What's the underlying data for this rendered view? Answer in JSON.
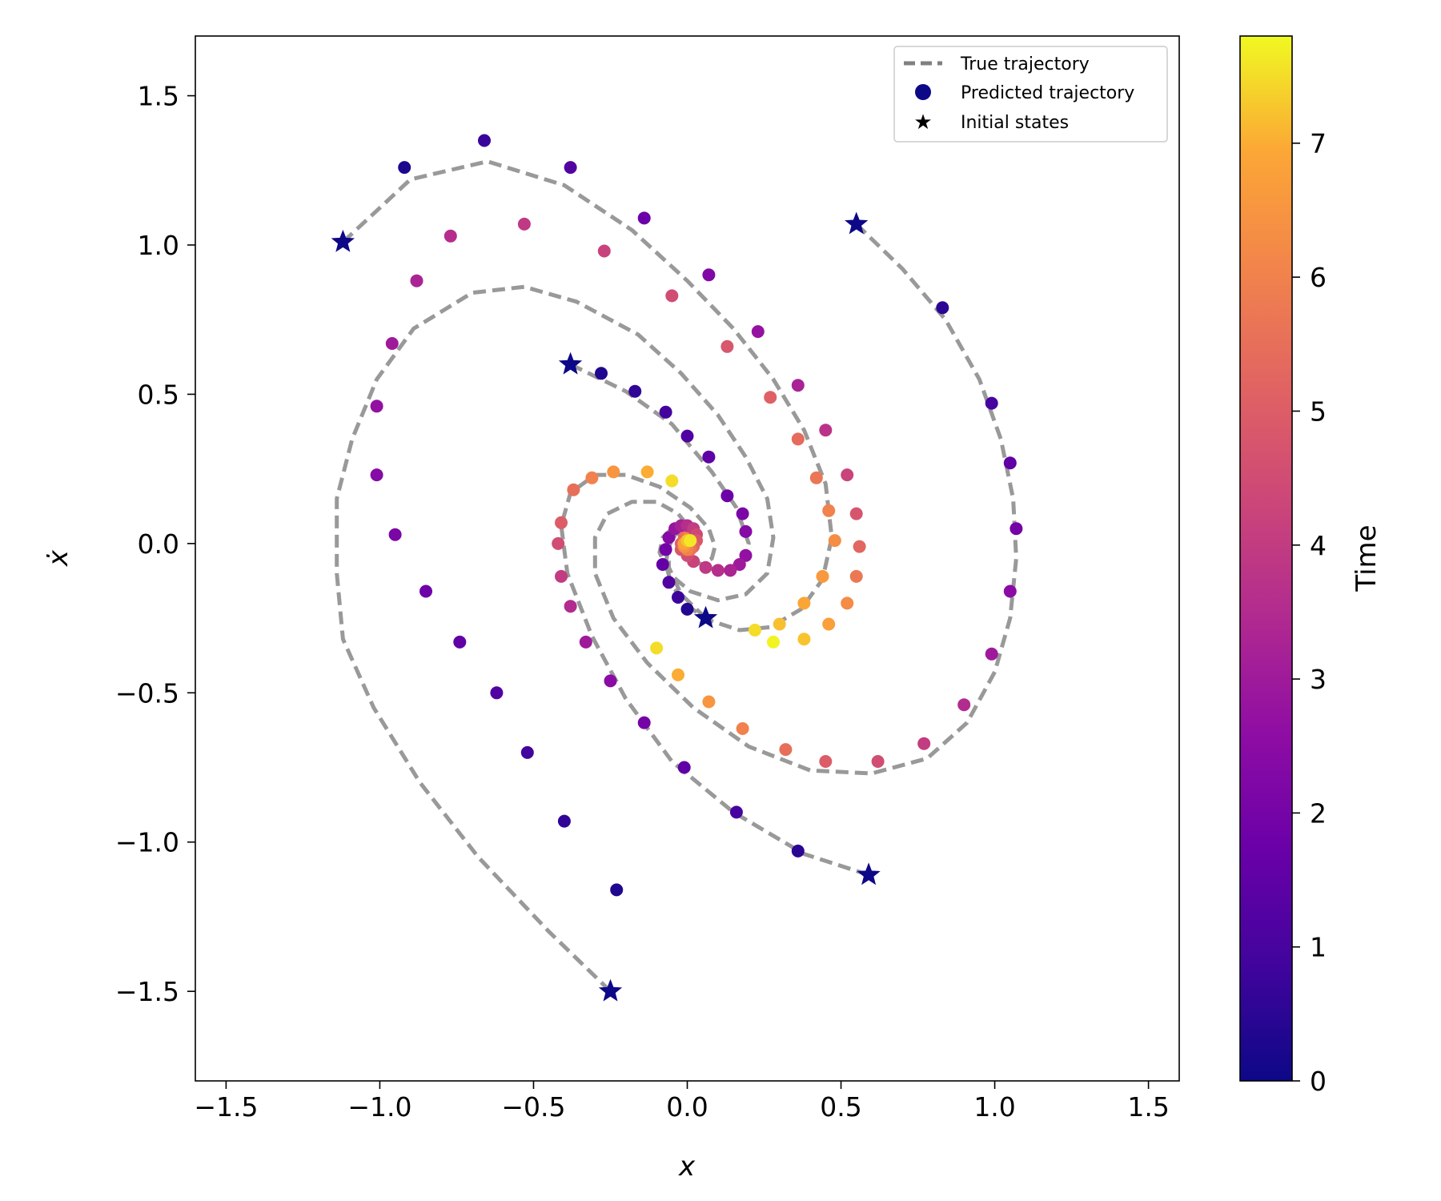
{
  "chart_data": {
    "type": "scatter",
    "xlabel": "x",
    "ylabel": "ẋ",
    "xlim": [
      -1.6,
      1.6
    ],
    "ylim": [
      -1.8,
      1.7
    ],
    "xticks": [
      -1.5,
      -1.0,
      -0.5,
      0.0,
      0.5,
      1.0,
      1.5
    ],
    "yticks": [
      -1.5,
      -1.0,
      -0.5,
      0.0,
      0.5,
      1.0,
      1.5
    ],
    "xtick_labels": [
      "−1.5",
      "−1.0",
      "−0.5",
      "0.0",
      "0.5",
      "1.0",
      "1.5"
    ],
    "ytick_labels": [
      "−1.5",
      "−1.0",
      "−0.5",
      "0.0",
      "0.5",
      "1.0",
      "1.5"
    ],
    "grid": false,
    "legend": {
      "placement": "top-right",
      "entries": [
        "True trajectory",
        "Predicted trajectory",
        "Initial states"
      ]
    },
    "colorbar": {
      "label": "Time",
      "colormap": "plasma",
      "range": [
        0,
        7.8
      ],
      "ticks": [
        0,
        1,
        2,
        3,
        4,
        5,
        6,
        7
      ],
      "tick_labels": [
        "0",
        "1",
        "2",
        "3",
        "4",
        "5",
        "6",
        "7"
      ]
    },
    "colors": {
      "true_line": "#999999",
      "legend_line": "#808080",
      "star": "#0d0887",
      "legend_marker": "#0d0887"
    },
    "initial_states": [
      {
        "x": -1.12,
        "y": 1.01
      },
      {
        "x": 0.55,
        "y": 1.07
      },
      {
        "x": -0.38,
        "y": 0.6
      },
      {
        "x": 0.06,
        "y": -0.25
      },
      {
        "x": 0.59,
        "y": -1.11
      },
      {
        "x": -0.25,
        "y": -1.5
      }
    ],
    "true_trajectories": [
      [
        [
          -1.12,
          1.01
        ],
        [
          -0.9,
          1.22
        ],
        [
          -0.65,
          1.28
        ],
        [
          -0.4,
          1.2
        ],
        [
          -0.18,
          1.05
        ],
        [
          0.0,
          0.88
        ],
        [
          0.15,
          0.72
        ],
        [
          0.28,
          0.55
        ],
        [
          0.38,
          0.38
        ],
        [
          0.45,
          0.2
        ],
        [
          0.47,
          0.02
        ],
        [
          0.44,
          -0.12
        ],
        [
          0.37,
          -0.22
        ],
        [
          0.27,
          -0.28
        ],
        [
          0.17,
          -0.29
        ],
        [
          0.08,
          -0.26
        ],
        [
          0.0,
          -0.21
        ],
        [
          -0.05,
          -0.14
        ],
        [
          -0.07,
          -0.07
        ],
        [
          -0.06,
          0.0
        ],
        [
          -0.03,
          0.04
        ],
        [
          0.0,
          0.05
        ],
        [
          0.03,
          0.04
        ],
        [
          0.04,
          0.02
        ],
        [
          0.04,
          0.0
        ],
        [
          0.03,
          -0.01
        ],
        [
          0.02,
          -0.02
        ],
        [
          0.0,
          -0.02
        ],
        [
          -0.01,
          -0.01
        ]
      ],
      [
        [
          0.55,
          1.07
        ],
        [
          0.7,
          0.92
        ],
        [
          0.84,
          0.75
        ],
        [
          0.95,
          0.55
        ],
        [
          1.02,
          0.35
        ],
        [
          1.06,
          0.15
        ],
        [
          1.07,
          -0.05
        ],
        [
          1.05,
          -0.25
        ],
        [
          1.0,
          -0.43
        ],
        [
          0.91,
          -0.6
        ],
        [
          0.78,
          -0.72
        ],
        [
          0.6,
          -0.77
        ],
        [
          0.4,
          -0.76
        ],
        [
          0.2,
          -0.68
        ],
        [
          0.02,
          -0.55
        ],
        [
          -0.13,
          -0.4
        ],
        [
          -0.24,
          -0.25
        ],
        [
          -0.3,
          -0.1
        ],
        [
          -0.3,
          0.02
        ],
        [
          -0.26,
          0.1
        ],
        [
          -0.18,
          0.14
        ],
        [
          -0.1,
          0.14
        ],
        [
          -0.03,
          0.1
        ],
        [
          0.01,
          0.05
        ],
        [
          0.03,
          0.01
        ],
        [
          0.03,
          -0.02
        ],
        [
          0.02,
          -0.03
        ],
        [
          0.0,
          -0.03
        ],
        [
          -0.01,
          -0.02
        ],
        [
          -0.02,
          -0.01
        ]
      ],
      [
        [
          -0.38,
          0.6
        ],
        [
          -0.2,
          0.51
        ],
        [
          -0.05,
          0.4
        ],
        [
          0.08,
          0.24
        ],
        [
          0.16,
          0.12
        ],
        [
          0.2,
          0.0
        ],
        [
          0.18,
          -0.06
        ],
        [
          0.12,
          -0.09
        ],
        [
          0.06,
          -0.08
        ],
        [
          0.01,
          -0.05
        ],
        [
          -0.01,
          -0.02
        ],
        [
          -0.01,
          0.0
        ],
        [
          0.0,
          0.01
        ]
      ],
      [
        [
          0.06,
          -0.25
        ],
        [
          -0.02,
          -0.17
        ],
        [
          -0.06,
          -0.08
        ],
        [
          -0.06,
          -0.01
        ],
        [
          -0.04,
          0.03
        ],
        [
          -0.01,
          0.04
        ],
        [
          0.01,
          0.03
        ],
        [
          0.02,
          0.01
        ],
        [
          0.02,
          0.0
        ],
        [
          0.01,
          -0.01
        ],
        [
          0.0,
          -0.01
        ]
      ],
      [
        [
          0.59,
          -1.11
        ],
        [
          0.38,
          -1.04
        ],
        [
          0.15,
          -0.9
        ],
        [
          -0.05,
          -0.73
        ],
        [
          -0.2,
          -0.52
        ],
        [
          -0.31,
          -0.31
        ],
        [
          -0.39,
          -0.1
        ],
        [
          -0.41,
          0.06
        ],
        [
          -0.38,
          0.17
        ],
        [
          -0.3,
          0.23
        ],
        [
          -0.2,
          0.23
        ],
        [
          -0.09,
          0.19
        ],
        [
          0.01,
          0.12
        ],
        [
          0.07,
          0.05
        ],
        [
          0.09,
          -0.01
        ],
        [
          0.08,
          -0.05
        ],
        [
          0.05,
          -0.07
        ],
        [
          0.02,
          -0.06
        ],
        [
          -0.01,
          -0.04
        ],
        [
          -0.02,
          -0.02
        ],
        [
          -0.02,
          0.0
        ],
        [
          -0.01,
          0.01
        ]
      ],
      [
        [
          -0.25,
          -1.5
        ],
        [
          -0.45,
          -1.3
        ],
        [
          -0.68,
          -1.05
        ],
        [
          -0.87,
          -0.8
        ],
        [
          -1.02,
          -0.55
        ],
        [
          -1.12,
          -0.32
        ],
        [
          -1.14,
          -0.1
        ],
        [
          -1.14,
          0.15
        ],
        [
          -1.09,
          0.35
        ],
        [
          -1.01,
          0.55
        ],
        [
          -0.89,
          0.72
        ],
        [
          -0.7,
          0.84
        ],
        [
          -0.53,
          0.86
        ],
        [
          -0.36,
          0.81
        ],
        [
          -0.16,
          0.7
        ],
        [
          -0.02,
          0.57
        ],
        [
          0.1,
          0.43
        ],
        [
          0.19,
          0.29
        ],
        [
          0.26,
          0.15
        ],
        [
          0.28,
          0.02
        ],
        [
          0.26,
          -0.1
        ],
        [
          0.19,
          -0.17
        ],
        [
          0.1,
          -0.19
        ],
        [
          0.01,
          -0.16
        ],
        [
          -0.06,
          -0.1
        ],
        [
          -0.09,
          -0.03
        ],
        [
          -0.08,
          0.02
        ],
        [
          -0.05,
          0.05
        ],
        [
          -0.01,
          0.06
        ],
        [
          0.02,
          0.04
        ],
        [
          0.03,
          0.02
        ]
      ]
    ],
    "predicted_trajectories": [
      {
        "times": [
          0.25,
          0.75,
          1.25,
          1.75,
          2.25,
          2.75,
          3.25,
          3.75,
          4.25,
          4.75,
          5.25,
          5.75,
          6.25,
          6.75,
          7.25,
          7.75
        ],
        "points": [
          [
            -0.92,
            1.26
          ],
          [
            -0.66,
            1.35
          ],
          [
            -0.38,
            1.26
          ],
          [
            -0.14,
            1.09
          ],
          [
            0.07,
            0.9
          ],
          [
            0.23,
            0.71
          ],
          [
            0.36,
            0.53
          ],
          [
            0.45,
            0.38
          ],
          [
            0.52,
            0.23
          ],
          [
            0.55,
            0.1
          ],
          [
            0.56,
            -0.01
          ],
          [
            0.55,
            -0.11
          ],
          [
            0.52,
            -0.2
          ],
          [
            0.46,
            -0.27
          ],
          [
            0.38,
            -0.32
          ],
          [
            0.28,
            -0.33
          ]
        ]
      },
      {
        "times": [
          0.5,
          1.0,
          1.5,
          2.0,
          2.5,
          3.0,
          3.5,
          4.0,
          4.5,
          5.0,
          5.5,
          6.0,
          6.5,
          7.0,
          7.5
        ],
        "points": [
          [
            0.83,
            0.79
          ],
          [
            0.99,
            0.47
          ],
          [
            1.05,
            0.27
          ],
          [
            1.07,
            0.05
          ],
          [
            1.05,
            -0.16
          ],
          [
            0.99,
            -0.37
          ],
          [
            0.9,
            -0.54
          ],
          [
            0.77,
            -0.67
          ],
          [
            0.62,
            -0.73
          ],
          [
            0.45,
            -0.73
          ],
          [
            0.32,
            -0.69
          ],
          [
            0.18,
            -0.62
          ],
          [
            0.07,
            -0.53
          ],
          [
            -0.03,
            -0.44
          ],
          [
            -0.1,
            -0.35
          ]
        ]
      },
      {
        "times": [
          0.3,
          0.6,
          0.9,
          1.2,
          1.5,
          1.8,
          2.1,
          2.4,
          2.7,
          3.0,
          3.3,
          3.6,
          3.9,
          4.2,
          4.5,
          4.8,
          5.1,
          5.4,
          5.7,
          6.0,
          6.3,
          6.6,
          6.9,
          7.2,
          7.5,
          7.8
        ],
        "points": [
          [
            -0.28,
            0.57
          ],
          [
            -0.17,
            0.51
          ],
          [
            -0.07,
            0.44
          ],
          [
            0.0,
            0.36
          ],
          [
            0.07,
            0.29
          ],
          [
            0.13,
            0.16
          ],
          [
            0.18,
            0.1
          ],
          [
            0.19,
            0.04
          ],
          [
            0.19,
            -0.04
          ],
          [
            0.17,
            -0.07
          ],
          [
            0.14,
            -0.09
          ],
          [
            0.1,
            -0.09
          ],
          [
            0.06,
            -0.08
          ],
          [
            0.02,
            -0.06
          ],
          [
            0.0,
            -0.04
          ],
          [
            -0.02,
            -0.02
          ],
          [
            -0.02,
            0.0
          ],
          [
            -0.01,
            0.02
          ],
          [
            0.0,
            0.03
          ],
          [
            0.01,
            0.03
          ],
          [
            0.02,
            0.02
          ],
          [
            0.03,
            0.01
          ],
          [
            0.02,
            0.0
          ],
          [
            0.01,
            -0.01
          ],
          [
            0.0,
            -0.01
          ],
          [
            -0.01,
            0.0
          ]
        ]
      },
      {
        "times": [
          0.4,
          0.8,
          1.2,
          1.6,
          2.0,
          2.4,
          2.8,
          3.2,
          3.6,
          4.0,
          4.4,
          4.8,
          5.2,
          5.6,
          6.0,
          6.4,
          6.8,
          7.2,
          7.6
        ],
        "points": [
          [
            0.0,
            -0.22
          ],
          [
            -0.03,
            -0.18
          ],
          [
            -0.06,
            -0.13
          ],
          [
            -0.08,
            -0.07
          ],
          [
            -0.07,
            -0.02
          ],
          [
            -0.06,
            0.02
          ],
          [
            -0.04,
            0.05
          ],
          [
            -0.02,
            0.06
          ],
          [
            0.0,
            0.06
          ],
          [
            0.02,
            0.05
          ],
          [
            0.03,
            0.03
          ],
          [
            0.03,
            0.01
          ],
          [
            0.02,
            -0.01
          ],
          [
            0.01,
            -0.02
          ],
          [
            0.0,
            -0.02
          ],
          [
            -0.01,
            -0.01
          ],
          [
            -0.01,
            0.0
          ],
          [
            0.0,
            0.01
          ],
          [
            0.01,
            0.01
          ]
        ]
      },
      {
        "times": [
          0.5,
          1.0,
          1.5,
          2.0,
          2.5,
          3.0,
          3.5,
          4.0,
          4.5,
          5.0,
          5.5,
          6.0,
          6.5,
          7.0,
          7.5
        ],
        "points": [
          [
            0.36,
            -1.03
          ],
          [
            0.16,
            -0.9
          ],
          [
            -0.01,
            -0.75
          ],
          [
            -0.14,
            -0.6
          ],
          [
            -0.25,
            -0.46
          ],
          [
            -0.33,
            -0.33
          ],
          [
            -0.38,
            -0.21
          ],
          [
            -0.41,
            -0.11
          ],
          [
            -0.42,
            0.0
          ],
          [
            -0.41,
            0.07
          ],
          [
            -0.37,
            0.18
          ],
          [
            -0.31,
            0.22
          ],
          [
            -0.24,
            0.24
          ],
          [
            -0.13,
            0.24
          ],
          [
            -0.05,
            0.21
          ]
        ]
      },
      {
        "times": [
          0.3,
          0.6,
          0.9,
          1.2,
          1.5,
          1.8,
          2.1,
          2.4,
          2.7,
          3.0,
          3.3,
          3.6,
          3.9,
          4.2,
          4.5,
          4.8,
          5.1,
          5.4,
          5.7,
          6.0,
          6.3,
          6.6,
          6.9,
          7.2,
          7.5
        ],
        "points": [
          [
            -0.23,
            -1.16
          ],
          [
            -0.4,
            -0.93
          ],
          [
            -0.52,
            -0.7
          ],
          [
            -0.62,
            -0.5
          ],
          [
            -0.74,
            -0.33
          ],
          [
            -0.85,
            -0.16
          ],
          [
            -0.95,
            0.03
          ],
          [
            -1.01,
            0.23
          ],
          [
            -1.01,
            0.46
          ],
          [
            -0.96,
            0.67
          ],
          [
            -0.88,
            0.88
          ],
          [
            -0.77,
            1.03
          ],
          [
            -0.53,
            1.07
          ],
          [
            -0.27,
            0.98
          ],
          [
            -0.05,
            0.83
          ],
          [
            0.13,
            0.66
          ],
          [
            0.27,
            0.49
          ],
          [
            0.36,
            0.35
          ],
          [
            0.42,
            0.22
          ],
          [
            0.46,
            0.11
          ],
          [
            0.48,
            0.01
          ],
          [
            0.44,
            -0.11
          ],
          [
            0.38,
            -0.2
          ],
          [
            0.3,
            -0.27
          ],
          [
            0.22,
            -0.29
          ]
        ]
      }
    ]
  }
}
